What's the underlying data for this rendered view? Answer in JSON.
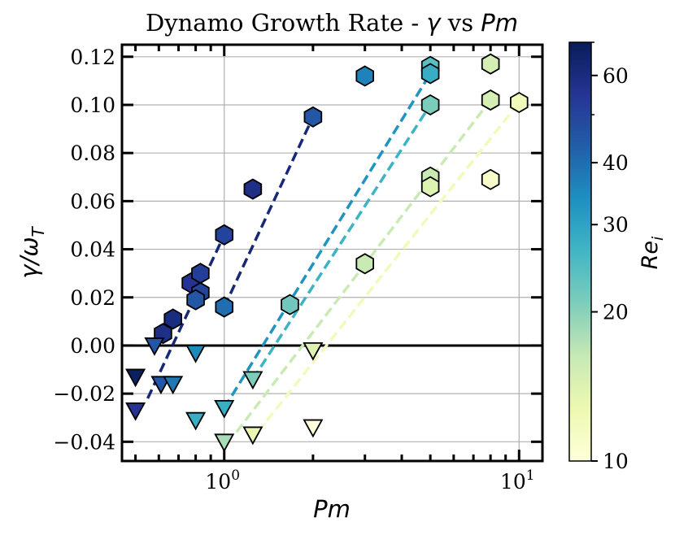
{
  "chart_data": {
    "type": "scatter",
    "title": {
      "prefix": "Dynamo Growth Rate - ",
      "gamma": "γ",
      "mid": " vs ",
      "pm": "Pm"
    },
    "xlabel": "Pm",
    "ylabel": {
      "main": "γ/ω",
      "sub": "T"
    },
    "x_scale": "log",
    "xlim": [
      0.45,
      12
    ],
    "ylim": [
      -0.048,
      0.125
    ],
    "x_ticks": [
      {
        "value": 1,
        "base": "10",
        "exp": "0"
      },
      {
        "value": 10,
        "base": "10",
        "exp": "1"
      }
    ],
    "y_ticks": [
      {
        "value": 0.12,
        "label": "0.12"
      },
      {
        "value": 0.1,
        "label": "0.10"
      },
      {
        "value": 0.08,
        "label": "0.08"
      },
      {
        "value": 0.06,
        "label": "0.06"
      },
      {
        "value": 0.04,
        "label": "0.04"
      },
      {
        "value": 0.02,
        "label": "0.02"
      },
      {
        "value": 0.0,
        "label": "0.00"
      },
      {
        "value": -0.02,
        "label": "−0.02"
      },
      {
        "value": -0.04,
        "label": "−0.04"
      }
    ],
    "grid": true,
    "zero_line": 0,
    "colorbar": {
      "label": "Re",
      "label_sub": "i",
      "scale": "log",
      "range": [
        10,
        70
      ],
      "ticks": [
        {
          "value": 10,
          "label": "10"
        },
        {
          "value": 20,
          "label": "20"
        },
        {
          "value": 30,
          "label": "30"
        },
        {
          "value": 40,
          "label": "40"
        },
        {
          "value": 60,
          "label": "60"
        }
      ],
      "colormap": "YlGnBu"
    },
    "hexagons": [
      {
        "pm": 0.62,
        "gamma": 0.005,
        "re": 58
      },
      {
        "pm": 0.67,
        "gamma": 0.011,
        "re": 60
      },
      {
        "pm": 0.77,
        "gamma": 0.026,
        "re": 55
      },
      {
        "pm": 0.83,
        "gamma": 0.03,
        "re": 52
      },
      {
        "pm": 0.83,
        "gamma": 0.022,
        "re": 50
      },
      {
        "pm": 0.8,
        "gamma": 0.019,
        "re": 45
      },
      {
        "pm": 1.0,
        "gamma": 0.046,
        "re": 50
      },
      {
        "pm": 1.0,
        "gamma": 0.016,
        "re": 40
      },
      {
        "pm": 1.25,
        "gamma": 0.065,
        "re": 58
      },
      {
        "pm": 2.0,
        "gamma": 0.095,
        "re": 45
      },
      {
        "pm": 1.67,
        "gamma": 0.017,
        "re": 22
      },
      {
        "pm": 3.0,
        "gamma": 0.112,
        "re": 36
      },
      {
        "pm": 3.0,
        "gamma": 0.034,
        "re": 16
      },
      {
        "pm": 5.0,
        "gamma": 0.116,
        "re": 24
      },
      {
        "pm": 5.0,
        "gamma": 0.113,
        "re": 28
      },
      {
        "pm": 5.0,
        "gamma": 0.1,
        "re": 21
      },
      {
        "pm": 5.0,
        "gamma": 0.07,
        "re": 16
      },
      {
        "pm": 5.0,
        "gamma": 0.066,
        "re": 14
      },
      {
        "pm": 8.0,
        "gamma": 0.117,
        "re": 15
      },
      {
        "pm": 8.0,
        "gamma": 0.102,
        "re": 15
      },
      {
        "pm": 8.0,
        "gamma": 0.069,
        "re": 11
      },
      {
        "pm": 10.0,
        "gamma": 0.101,
        "re": 12
      }
    ],
    "triangles": [
      {
        "pm": 0.5,
        "gamma": -0.013,
        "re": 68
      },
      {
        "pm": 0.5,
        "gamma": -0.027,
        "re": 55
      },
      {
        "pm": 0.58,
        "gamma": 0.0,
        "re": 45
      },
      {
        "pm": 0.61,
        "gamma": -0.016,
        "re": 45
      },
      {
        "pm": 0.67,
        "gamma": -0.016,
        "re": 38
      },
      {
        "pm": 0.8,
        "gamma": -0.003,
        "re": 35
      },
      {
        "pm": 0.8,
        "gamma": -0.031,
        "re": 28
      },
      {
        "pm": 1.0,
        "gamma": -0.026,
        "re": 28
      },
      {
        "pm": 1.0,
        "gamma": -0.04,
        "re": 18
      },
      {
        "pm": 1.25,
        "gamma": -0.014,
        "re": 21
      },
      {
        "pm": 1.25,
        "gamma": -0.037,
        "re": 13
      },
      {
        "pm": 2.0,
        "gamma": -0.002,
        "re": 14
      },
      {
        "pm": 2.0,
        "gamma": -0.034,
        "re": 10
      }
    ],
    "fit_lines": [
      {
        "x": [
          0.55,
          1.0
        ],
        "y": [
          -0.022,
          0.046
        ],
        "re": 62
      },
      {
        "x": [
          1.0,
          2.0
        ],
        "y": [
          0.016,
          0.095
        ],
        "re": 62
      },
      {
        "x": [
          1.0,
          5.0
        ],
        "y": [
          -0.026,
          0.113
        ],
        "re": 33
      },
      {
        "x": [
          1.25,
          5.0
        ],
        "y": [
          -0.014,
          0.1
        ],
        "re": 27
      },
      {
        "x": [
          1.1,
          8.0
        ],
        "y": [
          -0.036,
          0.102
        ],
        "re": 16
      },
      {
        "x": [
          1.3,
          10.0
        ],
        "y": [
          -0.036,
          0.101
        ],
        "re": 12
      }
    ]
  }
}
